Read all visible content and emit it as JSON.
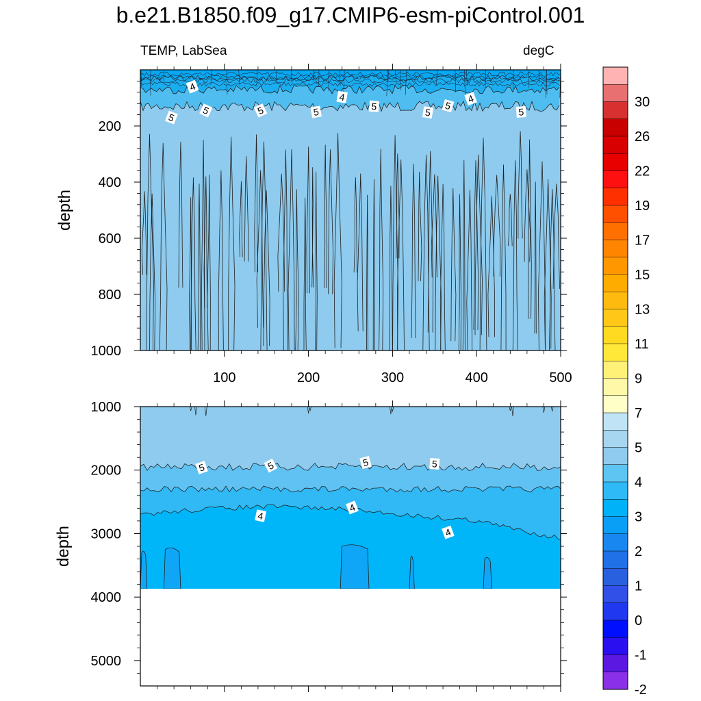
{
  "title": "b.e21.B1850.f09_g17.CMIP6-esm-piControl.001",
  "left_subtitle": "TEMP, LabSea",
  "right_subtitle": "degC",
  "chart_data": [
    {
      "type": "heatmap",
      "panel": "upper",
      "variable": "TEMP",
      "region": "LabSea",
      "units": "degC",
      "ylabel": "depth",
      "xlim": [
        0,
        500
      ],
      "ylim": [
        1000,
        0
      ],
      "x_ticks": [
        100,
        200,
        300,
        400,
        500
      ],
      "y_ticks": [
        200,
        400,
        600,
        800,
        1000
      ],
      "contour_labels": [
        {
          "x": 62,
          "y": 60,
          "label": "4"
        },
        {
          "x": 37,
          "y": 170,
          "label": "5"
        },
        {
          "x": 78,
          "y": 145,
          "label": "5"
        },
        {
          "x": 143,
          "y": 145,
          "label": "5"
        },
        {
          "x": 209,
          "y": 150,
          "label": "5"
        },
        {
          "x": 240,
          "y": 97,
          "label": "4"
        },
        {
          "x": 278,
          "y": 130,
          "label": "5"
        },
        {
          "x": 342,
          "y": 152,
          "label": "5"
        },
        {
          "x": 366,
          "y": 128,
          "label": "5"
        },
        {
          "x": 393,
          "y": 103,
          "label": "4"
        },
        {
          "x": 453,
          "y": 150,
          "label": "5"
        }
      ],
      "fill_levels": [
        {
          "depth_from": 0,
          "depth_to": 70,
          "temp_range": "4-4.5",
          "color": "#1aaef0"
        },
        {
          "depth_from": 70,
          "depth_to": 130,
          "temp_range": "4.5-5",
          "color": "#4fbdf0"
        },
        {
          "depth_from": 130,
          "depth_to": 1000,
          "temp_range": "5-5.5",
          "color": "#8ecbee"
        }
      ]
    },
    {
      "type": "heatmap",
      "panel": "lower",
      "variable": "TEMP",
      "units": "degC",
      "ylabel": "depth",
      "xlim": [
        0,
        500
      ],
      "ylim": [
        5400,
        1000
      ],
      "y_ticks": [
        1000,
        2000,
        3000,
        4000,
        5000
      ],
      "bottom_depth": 3870,
      "contour_labels": [
        {
          "x": 73,
          "y": 1960,
          "label": "5"
        },
        {
          "x": 155,
          "y": 1930,
          "label": "5"
        },
        {
          "x": 268,
          "y": 1880,
          "label": "5"
        },
        {
          "x": 350,
          "y": 1900,
          "label": "5"
        },
        {
          "x": 143,
          "y": 2720,
          "label": "4"
        },
        {
          "x": 252,
          "y": 2590,
          "label": "4"
        },
        {
          "x": 366,
          "y": 2980,
          "label": "4"
        }
      ],
      "fill_levels": [
        {
          "depth_from": 1000,
          "depth_to": 1950,
          "temp_range": "5-5.5",
          "color": "#8ecbee"
        },
        {
          "depth_from": 1950,
          "depth_to": 2300,
          "temp_range": "4.5-5",
          "color": "#60c2f2"
        },
        {
          "depth_from": 2300,
          "depth_to": 2700,
          "temp_range": "4-4.5",
          "color": "#30b9f5"
        },
        {
          "depth_from": 2700,
          "depth_to": 3870,
          "temp_range": "3.5-4",
          "color": "#00b6f8"
        }
      ]
    }
  ],
  "colorbar": {
    "labels": [
      "30",
      "26",
      "22",
      "19",
      "17",
      "15",
      "13",
      "11",
      "9",
      "7",
      "5",
      "4",
      "3",
      "2",
      "1",
      "0",
      "-1",
      "-2"
    ],
    "colors": [
      "#ffb3b3",
      "#e87070",
      "#d83030",
      "#c80000",
      "#d80000",
      "#e80000",
      "#ff1010",
      "#ff3000",
      "#ff5000",
      "#ff7000",
      "#ff8400",
      "#ff9800",
      "#ffac00",
      "#ffba10",
      "#ffc818",
      "#ffda20",
      "#ffe838",
      "#fff078",
      "#fff8a8",
      "#ffffc8",
      "#c0e4f6",
      "#a6d6f0",
      "#8ecbee",
      "#5ec4f2",
      "#2ebaf6",
      "#00b2f8",
      "#0a9ff6",
      "#1888f0",
      "#2070e8",
      "#2860e0",
      "#3050e8",
      "#2038f0",
      "#0010ff",
      "#2a10f0",
      "#5a18e0",
      "#8a30e8"
    ]
  }
}
